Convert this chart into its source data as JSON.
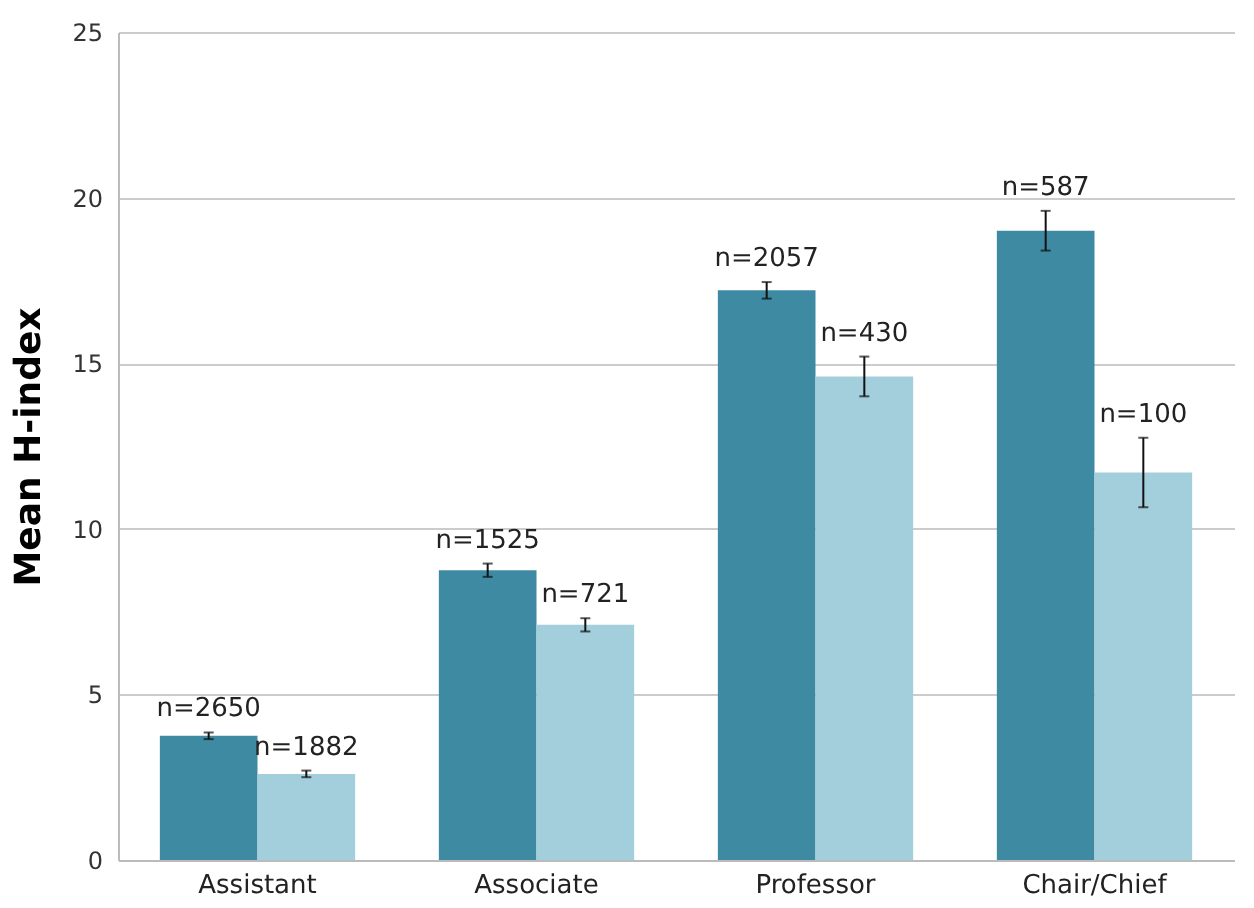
{
  "chart_data": {
    "type": "bar",
    "ylabel": "Mean H-index",
    "categories": [
      "Assistant",
      "Associate",
      "Professor",
      "Chair/Chief"
    ],
    "series": [
      {
        "color": "#3f8aa3",
        "values": [
          3.75,
          8.75,
          17.2,
          19.0
        ],
        "errors": [
          0.1,
          0.2,
          0.25,
          0.6
        ]
      },
      {
        "color": "#a3cfdd",
        "values": [
          2.6,
          7.1,
          14.6,
          11.7
        ],
        "errors": [
          0.1,
          0.2,
          0.6,
          1.05
        ]
      }
    ],
    "annotations": [
      "n=2650",
      "n=1525",
      "n=2057",
      "n=587",
      "n=1882",
      "n=721",
      "n=430",
      "n=100"
    ],
    "ylim": [
      0,
      25
    ],
    "yticks": [
      0,
      5,
      10,
      15,
      20,
      25
    ],
    "grid": "y",
    "legend": false
  }
}
